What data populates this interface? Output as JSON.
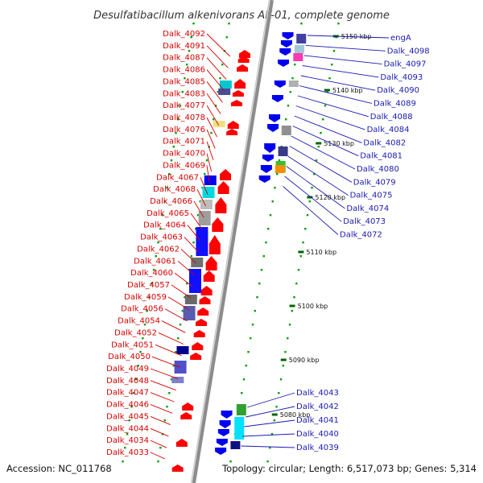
{
  "title": "Desulfatibacillum alkenivorans AK-01, complete genome",
  "footer": {
    "accession": "Accession: NC_011768",
    "topology": "Topology: circular; Length: 6,517,073 bp; Genes: 5,314"
  },
  "colors": {
    "left_label": "#d40000",
    "right_label": "#1a1ab0",
    "forward_gene": "#ff0000",
    "reverse_gene": "#0000ee",
    "backbone": "#8c8c8c",
    "tick_marks": "#00a000"
  },
  "ticks": [
    {
      "label": "5150 kbp",
      "bp": 5150
    },
    {
      "label": "5140 kbp",
      "bp": 5140
    },
    {
      "label": "5130 kbp",
      "bp": 5130
    },
    {
      "label": "5120 kbp",
      "bp": 5120
    },
    {
      "label": "5110 kbp",
      "bp": 5110
    },
    {
      "label": "5100 kbp",
      "bp": 5100
    },
    {
      "label": "5090 kbp",
      "bp": 5090
    },
    {
      "label": "5080 kbp",
      "bp": 5080
    }
  ],
  "left_labels": [
    "Dalk_4092",
    "Dalk_4091",
    "Dalk_4087",
    "Dalk_4086",
    "Dalk_4085",
    "Dalk_4083",
    "Dalk_4077",
    "Dalk_4078",
    "Dalk_4076",
    "Dalk_4071",
    "Dalk_4070",
    "Dalk_4069",
    "Dalk_4067",
    "Dalk_4068",
    "Dalk_4066",
    "Dalk_4065",
    "Dalk_4064",
    "Dalk_4063",
    "Dalk_4062",
    "Dalk_4061",
    "Dalk_4060",
    "Dalk_4057",
    "Dalk_4059",
    "Dalk_4056",
    "Dalk_4054",
    "Dalk_4052",
    "Dalk_4051",
    "Dalk_4050",
    "Dalk_4049",
    "Dalk_4048",
    "Dalk_4047",
    "Dalk_4046",
    "Dalk_4045",
    "Dalk_4044",
    "Dalk_4034",
    "Dalk_4033"
  ],
  "right_labels": [
    "engA",
    "Dalk_4098",
    "Dalk_4097",
    "Dalk_4093",
    "Dalk_4090",
    "Dalk_4089",
    "Dalk_4088",
    "Dalk_4084",
    "Dalk_4082",
    "Dalk_4081",
    "Dalk_4080",
    "Dalk_4079",
    "Dalk_4075",
    "Dalk_4074",
    "Dalk_4073",
    "Dalk_4072",
    "Dalk_4043",
    "Dalk_4042",
    "Dalk_4041",
    "Dalk_4040",
    "Dalk_4039"
  ]
}
